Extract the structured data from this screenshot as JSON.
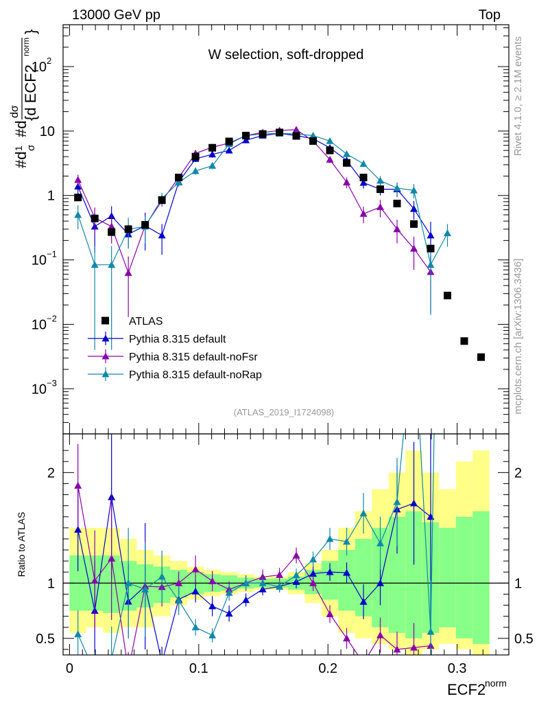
{
  "header": {
    "left": "13000 GeV pp",
    "right": "Top"
  },
  "side_labels": {
    "rivet": "Rivet 4.1.0, ≥ 2.1M events",
    "mcplots": "mcplots.cern.ch [arXiv:1306.3436]"
  },
  "chart_data": {
    "type": "scatter",
    "title": "W selection, soft-dropped",
    "analysis_label": "(ATLAS_2019_I1724098)",
    "ylabel_main": "#d1/σ #d dσ / {d ECF2^norm}",
    "ylabel_ratio": "Ratio to ATLAS",
    "xlabel": "ECF2",
    "xlabel_sup": "norm",
    "xlim": [
      -0.005,
      0.34
    ],
    "ylim_main_log10": [
      -3.7,
      2.65
    ],
    "ylim_ratio": [
      0.35,
      2.35
    ],
    "x_ticks": [
      0,
      0.1,
      0.2,
      0.3
    ],
    "x_tick_labels": [
      "0",
      "0.1",
      "0.2",
      "0.3"
    ],
    "y_ticks_main": [
      {
        "label": "10",
        "sup": "−3",
        "exp": -3
      },
      {
        "label": "10",
        "sup": "−2",
        "exp": -2
      },
      {
        "label": "10",
        "sup": "−1",
        "exp": -1
      },
      {
        "label": "1",
        "sup": "",
        "exp": 0
      },
      {
        "label": "10",
        "sup": "",
        "exp": 1
      },
      {
        "label": "10",
        "sup": "2",
        "exp": 2
      }
    ],
    "y_ticks_ratio": [
      {
        "label": "0.5",
        "value": 0.5
      },
      {
        "label": "1",
        "value": 1
      },
      {
        "label": "2",
        "value": 2
      }
    ],
    "data": {
      "name": "ATLAS",
      "color": "#000000",
      "x": [
        0.0065,
        0.0195,
        0.0325,
        0.0455,
        0.0585,
        0.0715,
        0.0845,
        0.0975,
        0.1105,
        0.1235,
        0.1365,
        0.1495,
        0.1625,
        0.1755,
        0.1885,
        0.2015,
        0.2145,
        0.2275,
        0.2405,
        0.2535,
        0.2665,
        0.2795,
        0.2925,
        0.3055,
        0.3185
      ],
      "y": [
        0.93,
        0.44,
        0.27,
        0.3,
        0.35,
        0.85,
        1.9,
        4.0,
        5.5,
        6.9,
        8.5,
        9.0,
        9.5,
        8.4,
        7.0,
        5.0,
        3.2,
        1.9,
        1.25,
        0.75,
        0.36,
        0.15,
        0.028,
        0.0055,
        0.0031
      ],
      "band_yellow": [
        [
          0.55,
          1.5
        ],
        [
          0.6,
          1.5
        ],
        [
          0.55,
          1.5
        ],
        [
          0.6,
          1.4
        ],
        [
          0.6,
          1.3
        ],
        [
          0.7,
          1.25
        ],
        [
          0.8,
          1.2
        ],
        [
          0.85,
          1.15
        ],
        [
          0.88,
          1.12
        ],
        [
          0.9,
          1.1
        ],
        [
          0.92,
          1.08
        ],
        [
          0.94,
          1.06
        ],
        [
          0.94,
          1.06
        ],
        [
          0.9,
          1.1
        ],
        [
          0.82,
          1.18
        ],
        [
          0.7,
          1.3
        ],
        [
          0.55,
          1.5
        ],
        [
          0.5,
          1.65
        ],
        [
          0.45,
          1.85
        ],
        [
          0.4,
          2.0
        ],
        [
          0.35,
          2.2
        ],
        [
          0.4,
          2.0
        ],
        [
          0.45,
          1.85
        ],
        [
          0.4,
          2.1
        ],
        [
          0.35,
          2.2
        ]
      ],
      "band_green": [
        [
          0.75,
          1.25
        ],
        [
          0.75,
          1.25
        ],
        [
          0.73,
          1.25
        ],
        [
          0.75,
          1.2
        ],
        [
          0.78,
          1.17
        ],
        [
          0.82,
          1.15
        ],
        [
          0.87,
          1.12
        ],
        [
          0.9,
          1.1
        ],
        [
          0.92,
          1.08
        ],
        [
          0.93,
          1.07
        ],
        [
          0.95,
          1.05
        ],
        [
          0.96,
          1.04
        ],
        [
          0.96,
          1.04
        ],
        [
          0.94,
          1.06
        ],
        [
          0.9,
          1.12
        ],
        [
          0.85,
          1.2
        ],
        [
          0.75,
          1.3
        ],
        [
          0.7,
          1.4
        ],
        [
          0.6,
          1.5
        ],
        [
          0.55,
          1.6
        ],
        [
          0.5,
          1.65
        ],
        [
          0.55,
          1.55
        ],
        [
          0.6,
          1.5
        ],
        [
          0.5,
          1.6
        ],
        [
          0.45,
          1.65
        ]
      ]
    },
    "series": [
      {
        "name": "Pythia 8.315 default",
        "color": "#0000cc",
        "x": [
          0.0065,
          0.0195,
          0.0325,
          0.0455,
          0.0585,
          0.0715,
          0.0845,
          0.0975,
          0.1105,
          0.1235,
          0.1365,
          0.1495,
          0.1625,
          0.1755,
          0.1885,
          0.2015,
          0.2145,
          0.2275,
          0.2405,
          0.2535,
          0.2665,
          0.2795
        ],
        "y": [
          1.38,
          0.33,
          0.48,
          0.25,
          0.34,
          0.24,
          1.62,
          3.7,
          4.35,
          5.0,
          7.2,
          8.5,
          9.2,
          8.5,
          7.6,
          5.5,
          3.5,
          1.58,
          1.25,
          1.25,
          0.62,
          0.24
        ],
        "err": [
          0.35,
          0.2,
          0.2,
          0.1,
          0.2,
          0.12,
          0.2,
          0.4,
          0.5,
          0.5,
          0.5,
          0.5,
          0.5,
          0.5,
          0.5,
          0.4,
          0.3,
          0.3,
          0.25,
          0.3,
          0.2,
          0.15
        ]
      },
      {
        "name": "Pythia 8.315 default-noFsr",
        "color": "#8800aa",
        "x": [
          0.0065,
          0.0195,
          0.0325,
          0.0455,
          0.0585,
          0.0715,
          0.0845,
          0.0975,
          0.1105,
          0.1235,
          0.1365,
          0.1495,
          0.1625,
          0.1755,
          0.1885,
          0.2015,
          0.2145,
          0.2275,
          0.2405,
          0.2535,
          0.2665,
          0.2795
        ],
        "y": [
          1.75,
          0.45,
          0.33,
          0.063,
          0.34,
          0.82,
          1.9,
          4.5,
          5.6,
          6.5,
          8.5,
          9.5,
          10.2,
          10.5,
          7.0,
          3.6,
          1.6,
          0.52,
          0.66,
          0.3,
          0.15,
          0.065
        ],
        "err": [
          0.35,
          0.2,
          0.15,
          0.05,
          0.15,
          0.15,
          0.2,
          0.5,
          0.5,
          0.5,
          0.6,
          0.6,
          0.6,
          0.6,
          0.5,
          0.4,
          0.3,
          0.15,
          0.2,
          0.12,
          0.08,
          0.05
        ]
      },
      {
        "name": "Pythia 8.315 default-noRap",
        "color": "#1188aa",
        "x": [
          0.0065,
          0.0195,
          0.0325,
          0.0455,
          0.0585,
          0.0715,
          0.0845,
          0.0975,
          0.1105,
          0.1235,
          0.1365,
          0.1495,
          0.1625,
          0.1755,
          0.1885,
          0.2015,
          0.2145,
          0.2275,
          0.2405,
          0.2535,
          0.2665,
          0.2795,
          0.2925
        ],
        "y": [
          0.5,
          0.084,
          0.084,
          0.3,
          0.33,
          0.9,
          1.6,
          2.4,
          2.9,
          6.3,
          8.5,
          9.0,
          9.2,
          9.0,
          8.5,
          7.0,
          4.4,
          3.1,
          1.7,
          1.3,
          1.2,
          0.084,
          0.26
        ],
        "err": [
          0.2,
          0.08,
          0.08,
          0.15,
          0.15,
          0.2,
          0.25,
          0.3,
          0.35,
          0.5,
          0.5,
          0.5,
          0.5,
          0.5,
          0.5,
          0.5,
          0.4,
          0.35,
          0.3,
          0.3,
          0.3,
          0.07,
          0.1
        ]
      }
    ]
  }
}
